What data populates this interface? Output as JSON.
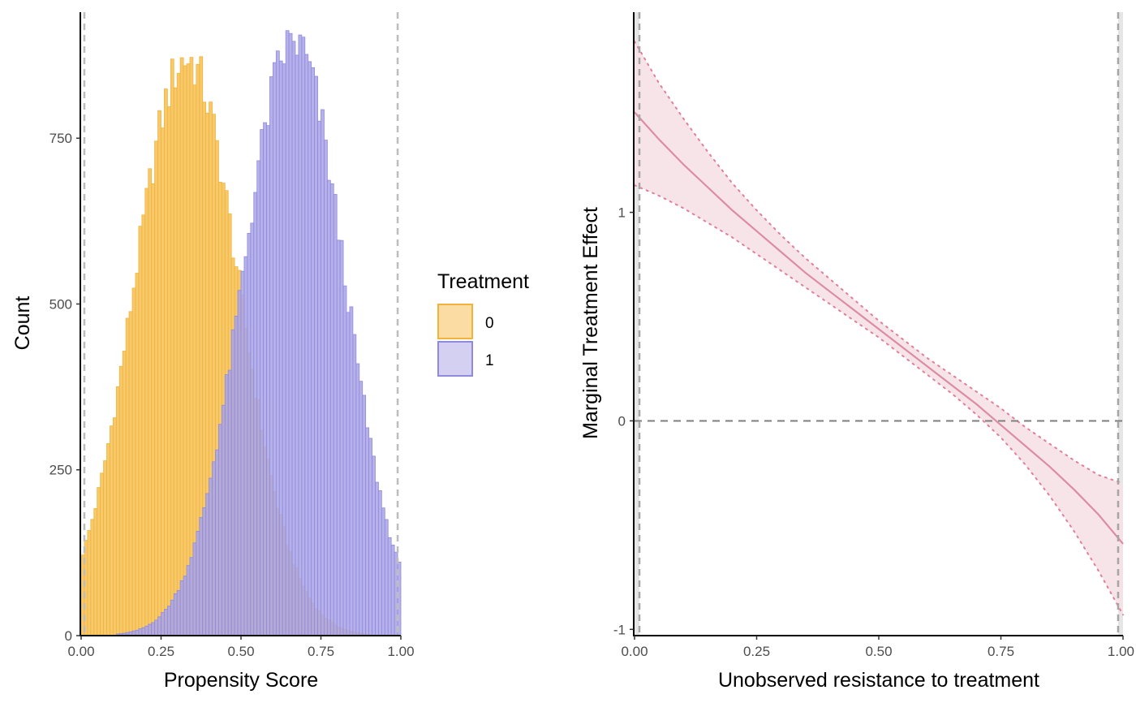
{
  "chart_data": [
    {
      "type": "bar",
      "subtype": "overlapping histogram",
      "xlabel": "Propensity Score",
      "ylabel": "Count",
      "xlim": [
        0,
        1
      ],
      "ylim": [
        0,
        940
      ],
      "x_ticks": [
        "0.00",
        "0.25",
        "0.50",
        "0.75",
        "1.00"
      ],
      "y_ticks": [
        "0",
        "250",
        "500",
        "750"
      ],
      "bin_width": 0.01,
      "reference_lines_x": [
        0.01,
        0.99
      ],
      "legend": {
        "title": "Treatment",
        "position": "right",
        "entries": [
          {
            "label": "0",
            "fill": "#f7c35a",
            "stroke": "#f0b43c"
          },
          {
            "label": "1",
            "fill": "#a9a5e5",
            "stroke": "#8f8ae0"
          }
        ]
      },
      "series": [
        {
          "name": "0",
          "color": "#f7c35a",
          "approx_peak_x": 0.32,
          "approx_peak_count": 900
        },
        {
          "name": "1",
          "color": "#a9a5e5",
          "approx_peak_x": 0.65,
          "approx_peak_count": 920
        }
      ],
      "grid": false
    },
    {
      "type": "line",
      "xlabel": "Unobserved resistance to treatment",
      "ylabel": "Marginal Treatment Effect",
      "xlim": [
        0,
        1
      ],
      "ylim": [
        -1.03,
        1.96
      ],
      "x_ticks": [
        "0.00",
        "0.25",
        "0.50",
        "0.75",
        "1.00"
      ],
      "y_ticks": [
        "-1",
        "0",
        "1"
      ],
      "reference_lines_x": [
        0.01,
        0.99
      ],
      "reference_line_y": 0,
      "line_color": "#dc8ca5",
      "band_color": "#f6e1e7",
      "x": [
        0.0,
        0.05,
        0.1,
        0.15,
        0.2,
        0.25,
        0.3,
        0.35,
        0.4,
        0.45,
        0.5,
        0.55,
        0.6,
        0.65,
        0.7,
        0.75,
        0.8,
        0.85,
        0.9,
        0.95,
        1.0
      ],
      "mte": [
        1.48,
        1.35,
        1.23,
        1.12,
        1.01,
        0.91,
        0.81,
        0.71,
        0.62,
        0.53,
        0.44,
        0.35,
        0.26,
        0.17,
        0.08,
        -0.02,
        -0.12,
        -0.22,
        -0.33,
        -0.45,
        -0.59
      ],
      "lower": [
        1.13,
        1.08,
        1.02,
        0.95,
        0.88,
        0.8,
        0.72,
        0.64,
        0.56,
        0.48,
        0.4,
        0.31,
        0.22,
        0.13,
        0.03,
        -0.08,
        -0.21,
        -0.36,
        -0.53,
        -0.72,
        -0.93
      ],
      "upper": [
        1.82,
        1.62,
        1.45,
        1.29,
        1.14,
        1.01,
        0.89,
        0.78,
        0.68,
        0.58,
        0.48,
        0.39,
        0.3,
        0.22,
        0.14,
        0.06,
        -0.03,
        -0.11,
        -0.19,
        -0.26,
        -0.3
      ],
      "grid": false
    }
  ]
}
